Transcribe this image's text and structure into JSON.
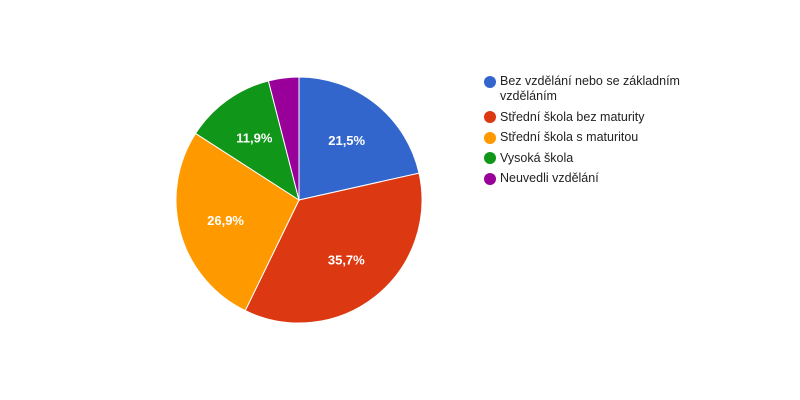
{
  "chart_data": {
    "type": "pie",
    "title": "",
    "legend_position": "right",
    "start_angle_deg": 0,
    "direction": "clockwise",
    "slices": [
      {
        "label": "Bez vzdělání nebo se základním vzděláním",
        "value": 21.5,
        "display": "21,5%",
        "color": "#3366cc"
      },
      {
        "label": "Střední škola bez maturity",
        "value": 35.7,
        "display": "35,7%",
        "color": "#dc3912"
      },
      {
        "label": "Střední škola s maturitou",
        "value": 26.9,
        "display": "26,9%",
        "color": "#ff9900"
      },
      {
        "label": "Vysoká škola",
        "value": 11.9,
        "display": "11,9%",
        "color": "#109618"
      },
      {
        "label": "Neuvedli vzdělání",
        "value": 4.0,
        "display": "",
        "color": "#990099"
      }
    ]
  }
}
